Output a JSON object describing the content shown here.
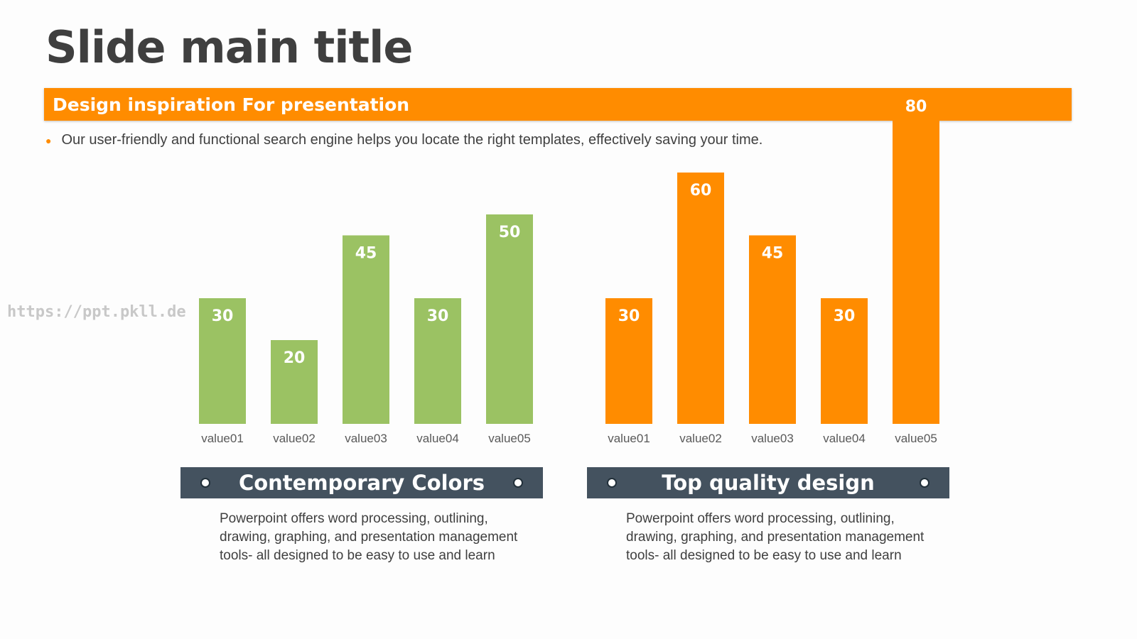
{
  "slide": {
    "title": "Slide main title",
    "banner": "Design inspiration For presentation",
    "bullet": "Our user-friendly and functional search engine helps you locate the right templates, effectively saving your time.",
    "watermark": "https://ppt.pkll.de"
  },
  "panels": [
    {
      "caption": "Contemporary Colors",
      "description": "Powerpoint offers word processing, outlining, drawing, graphing, and presentation management tools- all designed to be easy to use and learn"
    },
    {
      "caption": "Top quality design",
      "description": "Powerpoint offers word processing, outlining, drawing, graphing, and presentation management tools- all designed to be easy to use and learn"
    }
  ],
  "colors": {
    "green": "#9bc263",
    "orange": "#ff8c00",
    "caption_bar": "#44525f"
  },
  "chart_data": [
    {
      "type": "bar",
      "categories": [
        "value01",
        "value02",
        "value03",
        "value04",
        "value05"
      ],
      "values": [
        30,
        20,
        45,
        30,
        50
      ],
      "color": "#9bc263",
      "ylim": [
        0,
        80
      ],
      "grid": false
    },
    {
      "type": "bar",
      "categories": [
        "value01",
        "value02",
        "value03",
        "value04",
        "value05"
      ],
      "values": [
        30,
        60,
        45,
        30,
        80
      ],
      "color": "#ff8c00",
      "ylim": [
        0,
        80
      ],
      "grid": false
    }
  ]
}
